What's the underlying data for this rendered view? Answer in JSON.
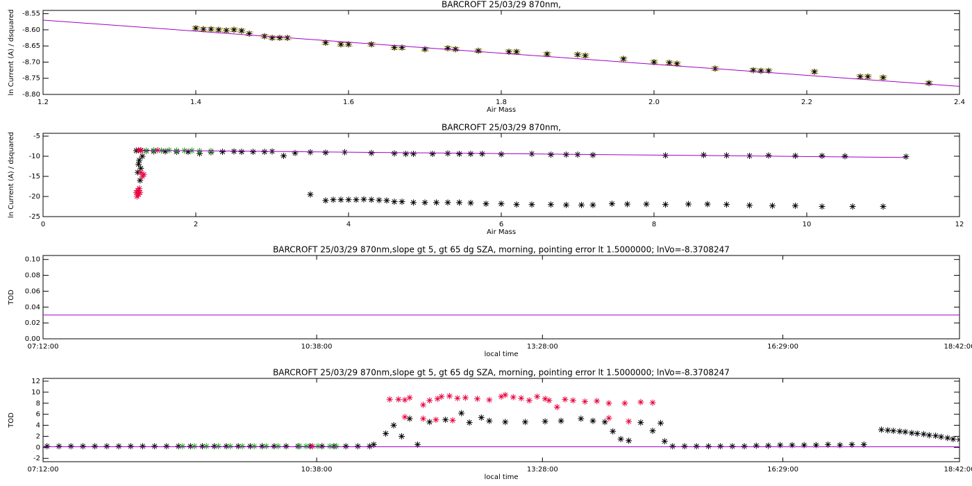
{
  "chart_data": [
    {
      "type": "scatter",
      "title": "BARCROFT 25/03/29 870nm,",
      "xlabel": "Air Mass",
      "ylabel": "ln Current (A) / dsquared",
      "xlim": [
        1.2,
        2.4
      ],
      "ylim": [
        -8.8,
        -8.54
      ],
      "xticks": [
        1.2,
        1.4,
        1.6,
        1.8,
        {
          "value": 2.0,
          "label": "2.0"
        },
        2.2,
        2.4
      ],
      "yticks": [
        {
          "value": -8.8,
          "label": "-8.80"
        },
        -8.75,
        {
          "value": -8.7,
          "label": "-8.70"
        },
        -8.65,
        {
          "value": -8.6,
          "label": "-8.60"
        },
        -8.55
      ],
      "series": [
        {
          "style": "stars",
          "color": "#000000",
          "error_color": "#c8b400",
          "x": [
            1.4,
            1.41,
            1.42,
            1.43,
            1.44,
            1.45,
            1.46,
            1.47,
            1.49,
            1.5,
            1.51,
            1.52,
            1.57,
            1.59,
            1.6,
            1.63,
            1.66,
            1.67,
            1.7,
            1.73,
            1.74,
            1.77,
            1.81,
            1.82,
            1.86,
            1.9,
            1.91,
            1.96,
            2.0,
            2.02,
            2.03,
            2.08,
            2.13,
            2.14,
            2.15,
            2.21,
            2.27,
            2.28,
            2.3,
            2.36
          ],
          "values": [
            -8.595,
            -8.598,
            -8.598,
            -8.6,
            -8.602,
            -8.6,
            -8.603,
            -8.612,
            -8.62,
            -8.625,
            -8.625,
            -8.625,
            -8.64,
            -8.645,
            -8.645,
            -8.645,
            -8.655,
            -8.655,
            -8.66,
            -8.657,
            -8.66,
            -8.665,
            -8.668,
            -8.668,
            -8.675,
            -8.677,
            -8.68,
            -8.69,
            -8.7,
            -8.702,
            -8.705,
            -8.72,
            -8.725,
            -8.727,
            -8.727,
            -8.73,
            -8.745,
            -8.745,
            -8.748,
            -8.765
          ],
          "errors": [
            0.005,
            0.005,
            0.005,
            0.005,
            0.005,
            0.005,
            0.005,
            0.005,
            0.005,
            0.005,
            0.005,
            0.005,
            0.005,
            0.005,
            0.005,
            0.005,
            0.005,
            0.005,
            0.005,
            0.005,
            0.005,
            0.005,
            0.005,
            0.005,
            0.005,
            0.005,
            0.005,
            0.005,
            0.005,
            0.005,
            0.005,
            0.005,
            0.005,
            0.005,
            0.005,
            0.005,
            0.005,
            0.005,
            0.005,
            0.005
          ]
        },
        {
          "style": "line",
          "color": "#a000c8",
          "x": [
            1.2,
            2.4
          ],
          "values": [
            -8.57,
            -8.775
          ]
        }
      ]
    },
    {
      "type": "scatter",
      "title": "BARCROFT 25/03/29 870nm,",
      "xlabel": "Air Mass",
      "ylabel": "ln Current (A) / dsquared",
      "xlim": [
        0,
        12
      ],
      "ylim": [
        -25,
        -4.3
      ],
      "xticks": [
        0,
        2,
        4,
        6,
        8,
        10,
        12
      ],
      "yticks": [
        -25,
        -20,
        -15,
        -10,
        -5
      ],
      "series": [
        {
          "style": "stars",
          "color": "#000000",
          "x": [
            1.22,
            1.28,
            1.35,
            1.45,
            1.6,
            1.75,
            1.9,
            2.05,
            2.2,
            2.35,
            2.5,
            2.6,
            2.75,
            2.9,
            3.0,
            3.15,
            3.3,
            3.5,
            3.7,
            3.95,
            4.3,
            4.6,
            4.75,
            4.85,
            5.1,
            5.3,
            5.45,
            5.6,
            5.75,
            6.0,
            6.4,
            6.65,
            6.85,
            7.0,
            7.2,
            8.15,
            8.65,
            8.95,
            9.25,
            9.5,
            9.85,
            10.2,
            10.5,
            11.3,
            1.24,
            1.25,
            1.26,
            1.27,
            1.28,
            1.3
          ],
          "values": [
            -8.6,
            -8.5,
            -8.7,
            -8.8,
            -8.8,
            -8.9,
            -8.9,
            -9.3,
            -9,
            -8.9,
            -8.8,
            -8.9,
            -8.9,
            -8.9,
            -8.8,
            -9.9,
            -9.2,
            -9,
            -9.1,
            -9,
            -9.2,
            -9.3,
            -9.4,
            -9.4,
            -9.4,
            -9.3,
            -9.4,
            -9.4,
            -9.4,
            -9.5,
            -9.4,
            -9.6,
            -9.6,
            -9.6,
            -9.7,
            -9.8,
            -9.7,
            -9.8,
            -9.9,
            -9.8,
            -9.9,
            -9.9,
            -10,
            -10.1,
            -14,
            -12,
            -11,
            -16,
            -13,
            -10
          ]
        },
        {
          "style": "stars",
          "color": "#000000",
          "x": [
            3.5,
            3.7,
            3.8,
            3.9,
            4.0,
            4.1,
            4.2,
            4.3,
            4.4,
            4.5,
            4.6,
            4.7,
            4.85,
            5.0,
            5.15,
            5.3,
            5.45,
            5.6,
            5.8,
            6.0,
            6.2,
            6.4,
            6.65,
            6.85,
            7.05,
            7.2,
            7.45,
            7.65,
            7.9,
            8.15,
            8.45,
            8.7,
            8.95,
            9.25,
            9.55,
            9.85,
            10.2,
            10.6,
            11.0
          ],
          "values": [
            -19.5,
            -21,
            -20.8,
            -20.8,
            -20.8,
            -20.8,
            -20.7,
            -20.8,
            -20.9,
            -21,
            -21.3,
            -21.3,
            -21.5,
            -21.5,
            -21.5,
            -21.5,
            -21.5,
            -21.6,
            -21.8,
            -21.8,
            -22,
            -22,
            -22,
            -22.1,
            -22.1,
            -22.1,
            -21.8,
            -21.9,
            -21.9,
            -22,
            -21.9,
            -21.9,
            -22,
            -22.2,
            -22.3,
            -22.3,
            -22.5,
            -22.5,
            -22.5
          ]
        },
        {
          "style": "stars",
          "color": "#e8003c",
          "x": [
            1.22,
            1.23,
            1.24,
            1.25,
            1.26,
            1.27,
            1.28,
            1.3,
            1.32,
            1.25,
            1.28,
            1.5
          ],
          "values": [
            -19,
            -20,
            -18.5,
            -19.5,
            -18,
            -19,
            -14,
            -15,
            -14.5,
            -8.5,
            -8.6,
            -8.5
          ]
        },
        {
          "style": "stars",
          "color": "#22a022",
          "x": [
            1.35,
            1.45,
            1.55,
            1.65,
            1.75,
            1.85,
            1.95,
            2.05,
            2.2
          ],
          "values": [
            -8.6,
            -8.5,
            -8.6,
            -8.5,
            -8.6,
            -8.6,
            -8.6,
            -8.7,
            -8.7
          ]
        },
        {
          "style": "line",
          "color": "#a000c8",
          "x": [
            1.3,
            11.3
          ],
          "values": [
            -8.5,
            -10.3
          ]
        }
      ]
    },
    {
      "type": "scatter",
      "title": "BARCROFT 25/03/29 870nm,slope gt 5, gt 65 dg SZA, morning, pointing error lt 1.5000000; lnVo=-8.3708247",
      "xlabel": "local time",
      "ylabel": "TOD",
      "xlim": [
        7.2,
        18.7
      ],
      "ylim": [
        0,
        0.105
      ],
      "xticks": [
        {
          "value": 7.2,
          "label": "07:12:00"
        },
        {
          "value": 10.6333,
          "label": "10:38:00"
        },
        {
          "value": 13.4667,
          "label": "13:28:00"
        },
        {
          "value": 16.4833,
          "label": "16:29:00"
        },
        {
          "value": 18.7,
          "label": "18:42:00"
        }
      ],
      "yticks": [
        {
          "value": 0,
          "label": "0.00"
        },
        {
          "value": 0.02,
          "label": "0.02"
        },
        {
          "value": 0.04,
          "label": "0.04"
        },
        {
          "value": 0.06,
          "label": "0.06"
        },
        {
          "value": 0.08,
          "label": "0.08"
        },
        {
          "value": 0.1,
          "label": "0.10"
        }
      ],
      "series": [
        {
          "style": "line",
          "color": "#a000c8",
          "x": [
            7.2,
            18.7
          ],
          "values": [
            0.03,
            0.03
          ]
        }
      ]
    },
    {
      "type": "scatter",
      "title": "BARCROFT 25/03/29 870nm,slope gt 5, gt 65 dg SZA, morning, pointing error lt 1.5000000; lnVo=-8.3708247",
      "xlabel": "local time",
      "ylabel": "TOD",
      "xlim": [
        7.2,
        18.7
      ],
      "ylim": [
        -2.6,
        12.5
      ],
      "xticks": [
        {
          "value": 7.2,
          "label": "07:12:00"
        },
        {
          "value": 10.6333,
          "label": "10:38:00"
        },
        {
          "value": 13.4667,
          "label": "13:28:00"
        },
        {
          "value": 16.4833,
          "label": "16:29:00"
        },
        {
          "value": 18.7,
          "label": "18:42:00"
        }
      ],
      "yticks": [
        -2,
        0,
        2,
        4,
        6,
        8,
        10,
        12
      ],
      "series": [
        {
          "style": "stars",
          "color": "#000000",
          "x": [
            7.25,
            7.4,
            7.55,
            7.7,
            7.85,
            8.0,
            8.15,
            8.3,
            8.45,
            8.6,
            8.75,
            8.9,
            9.05,
            9.2,
            9.35,
            9.5,
            9.65,
            9.8,
            9.95,
            10.1,
            10.25,
            10.4,
            10.55,
            10.7,
            10.85,
            11.0,
            11.15,
            11.3,
            15.1,
            15.25,
            15.4,
            15.55,
            15.7,
            15.85,
            16.0,
            16.15,
            16.3,
            16.45,
            16.6,
            16.75,
            16.9,
            17.05,
            17.2,
            17.35,
            17.5
          ],
          "values": [
            0.2,
            0.2,
            0.2,
            0.2,
            0.2,
            0.2,
            0.2,
            0.2,
            0.2,
            0.2,
            0.2,
            0.2,
            0.2,
            0.2,
            0.2,
            0.2,
            0.2,
            0.2,
            0.2,
            0.2,
            0.2,
            0.2,
            0.2,
            0.2,
            0.2,
            0.2,
            0.2,
            0.2,
            0.2,
            0.2,
            0.2,
            0.2,
            0.2,
            0.2,
            0.2,
            0.3,
            0.3,
            0.4,
            0.4,
            0.4,
            0.4,
            0.5,
            0.4,
            0.5,
            0.5
          ]
        },
        {
          "style": "stars",
          "color": "#000000",
          "x": [
            11.35,
            11.5,
            11.6,
            11.7,
            11.8,
            11.9,
            12.05,
            12.25,
            12.45,
            12.55,
            12.7,
            12.8,
            13.0,
            13.25,
            13.5,
            13.7,
            13.95,
            14.1,
            14.25,
            14.35,
            14.45,
            14.55,
            14.7,
            14.85,
            14.95,
            15.0
          ],
          "values": [
            0.5,
            2.5,
            4,
            2,
            5.2,
            0.5,
            4.6,
            5,
            6.2,
            4.5,
            5.4,
            4.8,
            4.6,
            4.6,
            4.7,
            4.8,
            5.2,
            4.8,
            4.6,
            2.9,
            1.5,
            1.2,
            4.5,
            3,
            4.4,
            1.1
          ]
        },
        {
          "style": "stars",
          "color": "#000000",
          "x": [
            17.72,
            17.8,
            17.87,
            17.95,
            18.02,
            18.1,
            18.17,
            18.25,
            18.32,
            18.4,
            18.47,
            18.55,
            18.62,
            18.7
          ],
          "values": [
            3.2,
            3.1,
            3.0,
            2.9,
            2.8,
            2.6,
            2.5,
            2.4,
            2.2,
            2.1,
            1.9,
            1.7,
            1.5,
            1.4
          ]
        },
        {
          "style": "stars",
          "color": "#e8003c",
          "x": [
            11.55,
            11.66,
            11.74,
            11.8,
            11.97,
            12.05,
            12.15,
            12.2,
            12.3,
            12.4,
            12.5,
            12.65,
            12.8,
            12.95,
            13.0,
            13.1,
            13.2,
            13.3,
            13.4,
            13.5,
            13.55,
            13.65,
            13.75,
            13.85,
            14.0,
            14.15,
            14.3,
            14.5,
            14.7,
            14.85,
            11.74,
            11.97,
            12.13,
            12.34,
            14.3,
            14.55,
            10.58
          ],
          "values": [
            8.7,
            8.7,
            8.6,
            9,
            7.7,
            8.5,
            8.8,
            9.2,
            9.3,
            8.9,
            9,
            8.8,
            8.6,
            9.2,
            9.5,
            9.1,
            8.9,
            8.5,
            9.2,
            8.8,
            8.5,
            7.3,
            8.7,
            8.5,
            8.3,
            8.4,
            8,
            8,
            8.2,
            8.1,
            5.5,
            5.2,
            5.0,
            4.9,
            5.3,
            4.7,
            0.2
          ]
        },
        {
          "style": "stars",
          "color": "#22a022",
          "x": [
            8.95,
            9.1,
            9.25,
            9.4,
            9.55,
            9.7,
            9.85,
            10.0,
            10.15,
            10.42,
            10.5,
            10.65,
            10.8,
            10.88
          ],
          "values": [
            0.2,
            0.2,
            0.2,
            0.2,
            0.2,
            0.2,
            0.2,
            0.2,
            0.2,
            0.2,
            0.2,
            0.2,
            0.2,
            0.2
          ]
        },
        {
          "style": "line",
          "color": "#a000c8",
          "x": [
            7.2,
            18.7
          ],
          "values": [
            0.1,
            0.1
          ]
        }
      ]
    }
  ]
}
